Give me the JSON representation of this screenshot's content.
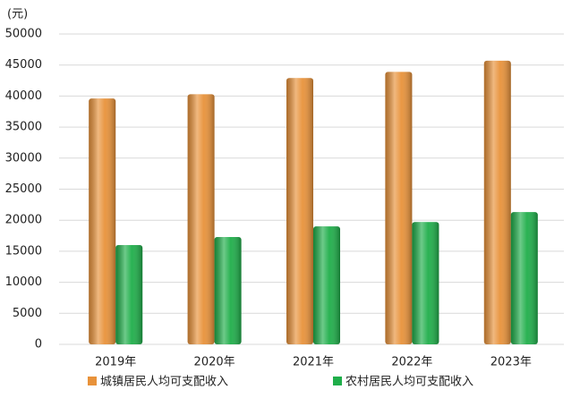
{
  "chart_data": {
    "type": "bar",
    "unit_label": "(元)",
    "categories": [
      "2019年",
      "2020年",
      "2021年",
      "2022年",
      "2023年"
    ],
    "series": [
      {
        "name": "城镇居民人均可支配收入",
        "color": "#e8923a",
        "values": [
          39600,
          40300,
          42900,
          43900,
          45700
        ]
      },
      {
        "name": "农村居民人均可支配收入",
        "color": "#1fae4a",
        "values": [
          16000,
          17300,
          19000,
          19700,
          21300
        ]
      }
    ],
    "ylim": [
      0,
      50000
    ],
    "yticks": [
      0,
      5000,
      10000,
      15000,
      20000,
      25000,
      30000,
      35000,
      40000,
      45000,
      50000
    ],
    "grid": true
  }
}
